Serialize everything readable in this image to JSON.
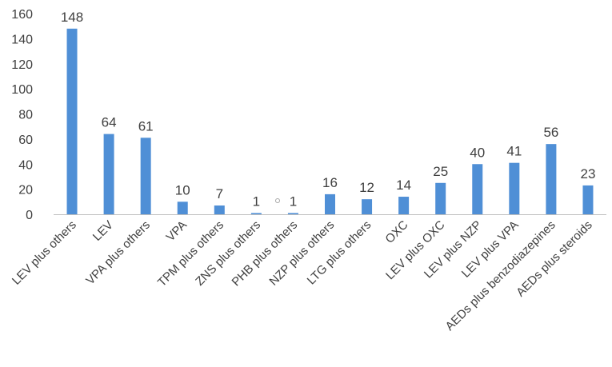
{
  "chart_data": {
    "type": "bar",
    "title": "",
    "xlabel": "",
    "ylabel": "",
    "ylim": [
      0,
      160
    ],
    "yticks": [
      0,
      20,
      40,
      60,
      80,
      100,
      120,
      140,
      160
    ],
    "grid": false,
    "legend": "none",
    "bar_color": "#4f8fd6",
    "categories": [
      "LEV plus others",
      "LEV",
      "VPA plus others",
      "VPA",
      "TPM plus others",
      "ZNS plus others",
      "PHB plus others",
      "NZP plus others",
      "LTG plus others",
      "OXC",
      "LEV plus OXC",
      "LEV plus NZP",
      "LEV plus VPA",
      "AEDs plus benzodiazepines",
      "AEDs plus steroids"
    ],
    "values": [
      148,
      64,
      61,
      10,
      7,
      1,
      1,
      16,
      12,
      14,
      25,
      40,
      41,
      56,
      23
    ],
    "data_labels": [
      "148",
      "64",
      "61",
      "10",
      "7",
      "1",
      "1",
      "16",
      "12",
      "14",
      "25",
      "40",
      "41",
      "56",
      "23"
    ]
  }
}
